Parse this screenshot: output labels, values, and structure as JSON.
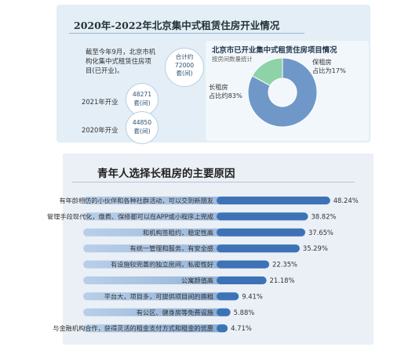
{
  "top": {
    "title": "2020年-2022年北京集中式租赁住房开业情况",
    "note": "截至今年9月，北京市机构化集中式租赁住房项目(已开业)。",
    "total_label": "合计约",
    "total_value": "72000",
    "total_unit": "套(间)",
    "years": [
      {
        "label": "2021年开业",
        "value": "48271",
        "unit": "套(间)"
      },
      {
        "label": "2020年开业",
        "value": "44850",
        "unit": "套(间)"
      }
    ]
  },
  "pie": {
    "title": "北京市已开业集中式租赁住房项目情况",
    "subtitle": "按房间数量统计",
    "long_label_1": "长租房",
    "long_label_2": "占比约83%",
    "bao_label_1": "保租房",
    "bao_label_2": "占比为17%"
  },
  "chart_data": [
    {
      "type": "pie",
      "title": "北京市已开业集中式租赁住房项目情况",
      "subtitle": "按房间数量统计",
      "slices": [
        {
          "name": "长租房",
          "value": 83,
          "color": "#6f98c8"
        },
        {
          "name": "保租房",
          "value": 17,
          "color": "#8ed2a8"
        }
      ]
    },
    {
      "type": "bar",
      "orientation": "horizontal",
      "title": "青年人选择长租房的主要原因",
      "categories": [
        "有年龄相仿的小伙伴和各种社群活动，可以交到新朋友",
        "管理手段现代化，缴费、保修都可以在APP或小程序上完成",
        "和机构签租约，稳定性高",
        "有统一管理和服务，有安全感",
        "有设施较完善的独立房间，私密性好",
        "公寓颜值高",
        "平台大，项目多，可提供项目间的换租",
        "有公区、健身房等免费设施",
        "与金融机构合作，获得灵活的租金支付方式和租金的优惠"
      ],
      "values": [
        48.24,
        38.82,
        37.65,
        35.29,
        22.35,
        21.18,
        9.41,
        5.88,
        4.71
      ],
      "value_labels": [
        "48.24%",
        "38.82%",
        "37.65%",
        "35.29%",
        "22.35%",
        "21.18%",
        "9.41%",
        "5.88%",
        "4.71%"
      ],
      "xlim": [
        0,
        50
      ],
      "colors": {
        "bar_start": "#8fb4dd",
        "bar_end": "#3d73b6"
      }
    }
  ]
}
